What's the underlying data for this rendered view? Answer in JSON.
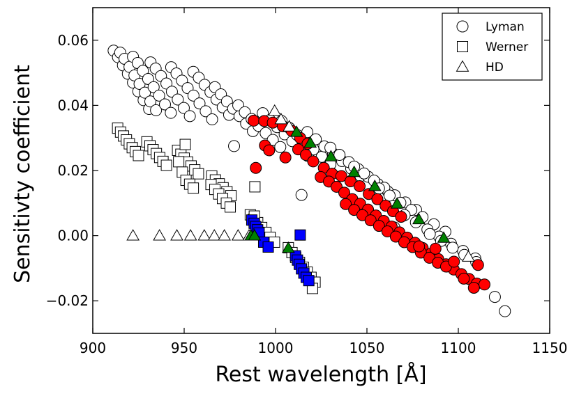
{
  "chart_data": {
    "type": "scatter",
    "title": "",
    "xlabel": "Rest wavelength [Å]",
    "ylabel": "Sensitivty coefficient",
    "xlim": [
      900,
      1150
    ],
    "ylim": [
      -0.03,
      0.07
    ],
    "xticks": [
      900,
      950,
      1000,
      1050,
      1100,
      1150
    ],
    "xtick_labels": [
      "900",
      "950",
      "1000",
      "1050",
      "1100",
      "1150"
    ],
    "yticks": [
      -0.02,
      0.0,
      0.02,
      0.04,
      0.06
    ],
    "ytick_labels": [
      "−0.02",
      "0.00",
      "0.02",
      "0.04",
      "0.06"
    ],
    "grid": false,
    "legend_position": "top-right",
    "legend": [
      {
        "label": "Lyman",
        "marker": "circle"
      },
      {
        "label": "Werner",
        "marker": "square"
      },
      {
        "label": "HD",
        "marker": "triangle"
      }
    ],
    "series": [
      {
        "name": "Lyman",
        "marker": "circle",
        "color": "#ffffff",
        "points": [
          [
            911.4,
            0.0568
          ],
          [
            913.8,
            0.0548
          ],
          [
            916.5,
            0.0523
          ],
          [
            919.2,
            0.0497
          ],
          [
            922.0,
            0.047
          ],
          [
            924.9,
            0.0443
          ],
          [
            927.8,
            0.0416
          ],
          [
            930.8,
            0.0389
          ],
          [
            915.0,
            0.0562
          ],
          [
            917.4,
            0.0543
          ],
          [
            920.1,
            0.0518
          ],
          [
            922.8,
            0.0492
          ],
          [
            925.6,
            0.0466
          ],
          [
            928.5,
            0.0439
          ],
          [
            931.5,
            0.0412
          ],
          [
            934.6,
            0.0385
          ],
          [
            922.0,
            0.0549
          ],
          [
            924.6,
            0.053
          ],
          [
            927.4,
            0.0506
          ],
          [
            930.3,
            0.0481
          ],
          [
            933.3,
            0.0456
          ],
          [
            936.3,
            0.043
          ],
          [
            939.5,
            0.0403
          ],
          [
            942.7,
            0.0377
          ],
          [
            931.6,
            0.0532
          ],
          [
            934.4,
            0.0513
          ],
          [
            937.3,
            0.049
          ],
          [
            940.3,
            0.0467
          ],
          [
            943.3,
            0.0442
          ],
          [
            946.5,
            0.0418
          ],
          [
            949.8,
            0.0392
          ],
          [
            953.1,
            0.0367
          ],
          [
            942.9,
            0.0517
          ],
          [
            945.8,
            0.0498
          ],
          [
            948.8,
            0.0476
          ],
          [
            951.9,
            0.0453
          ],
          [
            955.1,
            0.043
          ],
          [
            958.4,
            0.0406
          ],
          [
            961.8,
            0.0382
          ],
          [
            965.3,
            0.0357
          ],
          [
            955.0,
            0.0503
          ],
          [
            958.0,
            0.0485
          ],
          [
            961.2,
            0.0463
          ],
          [
            964.4,
            0.0441
          ],
          [
            967.7,
            0.0418
          ],
          [
            971.1,
            0.0394
          ],
          [
            974.6,
            0.0371
          ],
          [
            966.8,
            0.0456
          ],
          [
            970.1,
            0.0434
          ],
          [
            973.4,
            0.0412
          ],
          [
            976.8,
            0.039
          ],
          [
            980.3,
            0.0367
          ],
          [
            983.9,
            0.0344
          ],
          [
            987.6,
            0.0321
          ],
          [
            979.6,
            0.04
          ],
          [
            983.2,
            0.0379
          ],
          [
            986.9,
            0.0358
          ],
          [
            990.7,
            0.0337
          ],
          [
            994.6,
            0.0315
          ],
          [
            998.5,
            0.0294
          ],
          [
            1002.6,
            0.0272
          ],
          [
            993.0,
            0.0376
          ],
          [
            996.9,
            0.0355
          ],
          [
            1000.9,
            0.0333
          ],
          [
            1005.0,
            0.0311
          ],
          [
            1009.2,
            0.029
          ],
          [
            1013.5,
            0.0267
          ],
          [
            1017.8,
            0.0244
          ],
          [
            1003.3,
            0.0352
          ],
          [
            1007.5,
            0.0331
          ],
          [
            1011.8,
            0.0309
          ],
          [
            1016.2,
            0.0288
          ],
          [
            1020.7,
            0.0265
          ],
          [
            1025.3,
            0.0242
          ],
          [
            1030.0,
            0.0219
          ],
          [
            1017.4,
            0.0318
          ],
          [
            1022.0,
            0.0296
          ],
          [
            1026.7,
            0.0274
          ],
          [
            1031.5,
            0.0252
          ],
          [
            1036.4,
            0.0229
          ],
          [
            1041.4,
            0.0206
          ],
          [
            1046.5,
            0.0183
          ],
          [
            1030.0,
            0.027
          ],
          [
            1035.0,
            0.0248
          ],
          [
            1040.1,
            0.0226
          ],
          [
            1045.3,
            0.0204
          ],
          [
            1050.6,
            0.0181
          ],
          [
            1056.0,
            0.0158
          ],
          [
            1061.5,
            0.0135
          ],
          [
            1043.0,
            0.0212
          ],
          [
            1048.4,
            0.0191
          ],
          [
            1053.9,
            0.0169
          ],
          [
            1059.5,
            0.0147
          ],
          [
            1065.2,
            0.0124
          ],
          [
            1071.0,
            0.0102
          ],
          [
            1076.9,
            0.0079
          ],
          [
            1056.6,
            0.0145
          ],
          [
            1062.4,
            0.0123
          ],
          [
            1068.3,
            0.0101
          ],
          [
            1074.3,
            0.0079
          ],
          [
            1080.4,
            0.0057
          ],
          [
            1086.6,
            0.0035
          ],
          [
            1092.9,
            0.0012
          ],
          [
            1070.6,
            0.0063
          ],
          [
            1076.8,
            0.0041
          ],
          [
            1083.1,
            0.0019
          ],
          [
            1089.5,
            -0.0003
          ],
          [
            1096.0,
            -0.0025
          ],
          [
            1102.6,
            -0.0047
          ],
          [
            1109.3,
            -0.007
          ],
          [
            1084.4,
            0.0005
          ],
          [
            1090.6,
            -0.0016
          ],
          [
            1096.9,
            -0.0037
          ],
          [
            1103.3,
            -0.0059
          ],
          [
            1109.8,
            -0.0081
          ],
          [
            977.3,
            0.0275
          ],
          [
            1014.2,
            0.0125
          ],
          [
            1065.0,
            0.0025
          ],
          [
            1120.0,
            -0.0188
          ],
          [
            1125.5,
            -0.0232
          ]
        ]
      },
      {
        "name": "Lyman (red)",
        "marker": "circle",
        "color": "#ff0000",
        "points": [
          [
            988.0,
            0.0353
          ],
          [
            993.8,
            0.0352
          ],
          [
            989.2,
            0.0208
          ],
          [
            998.5,
            0.0347
          ],
          [
            1004.0,
            0.0336
          ],
          [
            1008.8,
            0.0322
          ],
          [
            1013.5,
            0.03
          ],
          [
            1017.5,
            0.0282
          ],
          [
            994.2,
            0.0277
          ],
          [
            996.5,
            0.0262
          ],
          [
            1005.4,
            0.024
          ],
          [
            1012.4,
            0.0265
          ],
          [
            1016.6,
            0.0248
          ],
          [
            1020.6,
            0.0228
          ],
          [
            1026.4,
            0.0208
          ],
          [
            1031.0,
            0.019
          ],
          [
            1036.0,
            0.0183
          ],
          [
            1041.0,
            0.0167
          ],
          [
            1046.0,
            0.0152
          ],
          [
            1051.0,
            0.0128
          ],
          [
            1055.7,
            0.0112
          ],
          [
            1060.2,
            0.0092
          ],
          [
            1064.3,
            0.0075
          ],
          [
            1068.7,
            0.0058
          ],
          [
            1024.7,
            0.018
          ],
          [
            1029.2,
            0.0166
          ],
          [
            1033.4,
            0.015
          ],
          [
            1037.6,
            0.0132
          ],
          [
            1042.0,
            0.0112
          ],
          [
            1046.3,
            0.0098
          ],
          [
            1050.6,
            0.008
          ],
          [
            1054.9,
            0.0062
          ],
          [
            1059.2,
            0.0045
          ],
          [
            1063.5,
            0.0028
          ],
          [
            1067.8,
            0.001
          ],
          [
            1072.0,
            -0.0006
          ],
          [
            1076.3,
            -0.0022
          ],
          [
            1080.5,
            -0.0038
          ],
          [
            1084.8,
            -0.0056
          ],
          [
            1089.0,
            -0.0072
          ],
          [
            1093.2,
            -0.0088
          ],
          [
            1097.5,
            -0.0104
          ],
          [
            1101.7,
            -0.0118
          ],
          [
            1105.9,
            -0.0133
          ],
          [
            1110.1,
            -0.0147
          ],
          [
            1114.3,
            -0.015
          ],
          [
            1038.4,
            0.0097
          ],
          [
            1043.0,
            0.0079
          ],
          [
            1047.5,
            0.0063
          ],
          [
            1052.0,
            0.0047
          ],
          [
            1056.6,
            0.003
          ],
          [
            1061.2,
            0.0013
          ],
          [
            1065.8,
            -0.0003
          ],
          [
            1070.4,
            -0.002
          ],
          [
            1075.0,
            -0.0035
          ],
          [
            1079.5,
            -0.0052
          ],
          [
            1084.2,
            -0.0068
          ],
          [
            1088.8,
            -0.0083
          ],
          [
            1093.3,
            -0.0095
          ],
          [
            1097.6,
            -0.008
          ],
          [
            1078.5,
            -0.0033
          ],
          [
            1087.5,
            -0.004
          ],
          [
            1103.0,
            -0.0132
          ],
          [
            1108.5,
            -0.016
          ],
          [
            1110.8,
            -0.009
          ]
        ]
      },
      {
        "name": "Werner",
        "marker": "square",
        "color": "#ffffff",
        "points": [
          [
            913.6,
            0.033
          ],
          [
            915.2,
            0.0318
          ],
          [
            916.8,
            0.0306
          ],
          [
            918.4,
            0.0294
          ],
          [
            920.0,
            0.0282
          ],
          [
            921.6,
            0.027
          ],
          [
            923.3,
            0.0258
          ],
          [
            925.0,
            0.0246
          ],
          [
            929.6,
            0.0288
          ],
          [
            931.3,
            0.0276
          ],
          [
            933.0,
            0.0264
          ],
          [
            934.8,
            0.0252
          ],
          [
            936.6,
            0.024
          ],
          [
            938.4,
            0.0228
          ],
          [
            940.3,
            0.0216
          ],
          [
            946.4,
            0.0262
          ],
          [
            948.2,
            0.025
          ],
          [
            950.0,
            0.0238
          ],
          [
            951.9,
            0.0226
          ],
          [
            953.8,
            0.0214
          ],
          [
            955.8,
            0.0202
          ],
          [
            957.8,
            0.019
          ],
          [
            947.0,
            0.0227
          ],
          [
            949.0,
            0.0195
          ],
          [
            951.0,
            0.017
          ],
          [
            953.0,
            0.0158
          ],
          [
            955.0,
            0.0146
          ],
          [
            965.1,
            0.0183
          ],
          [
            967.1,
            0.0171
          ],
          [
            969.2,
            0.0159
          ],
          [
            971.3,
            0.0147
          ],
          [
            973.4,
            0.0135
          ],
          [
            975.6,
            0.0123
          ],
          [
            964.7,
            0.0157
          ],
          [
            966.8,
            0.0142
          ],
          [
            968.9,
            0.0128
          ],
          [
            971.0,
            0.0114
          ],
          [
            973.1,
            0.01
          ],
          [
            975.2,
            0.0088
          ],
          [
            986.2,
            0.0064
          ],
          [
            988.0,
            0.005
          ],
          [
            990.2,
            0.004
          ],
          [
            992.4,
            0.0025
          ],
          [
            994.7,
            0.001
          ],
          [
            997.0,
            -0.0005
          ],
          [
            999.4,
            -0.002
          ],
          [
            1007.0,
            -0.0037
          ],
          [
            1009.0,
            -0.0052
          ],
          [
            1011.0,
            -0.0067
          ],
          [
            1013.1,
            -0.0082
          ],
          [
            1015.2,
            -0.0097
          ],
          [
            1017.3,
            -0.0112
          ],
          [
            1019.4,
            -0.0128
          ],
          [
            1021.6,
            -0.0143
          ],
          [
            1020.2,
            -0.0162
          ],
          [
            950.6,
            0.028
          ],
          [
            988.7,
            0.015
          ],
          [
            988.4,
            0.006
          ]
        ]
      },
      {
        "name": "Werner (blue)",
        "marker": "square",
        "color": "#0000ff",
        "points": [
          [
            987.0,
            0.0048
          ],
          [
            988.3,
            0.0038
          ],
          [
            989.2,
            0.0028
          ],
          [
            990.2,
            0.0018
          ],
          [
            991.0,
            0.0008
          ],
          [
            993.5,
            -0.002
          ],
          [
            996.0,
            -0.0035
          ],
          [
            1010.9,
            -0.0062
          ],
          [
            1012.0,
            -0.0075
          ],
          [
            1013.0,
            -0.0088
          ],
          [
            1014.2,
            -0.0102
          ],
          [
            1015.5,
            -0.0115
          ],
          [
            1016.8,
            -0.0128
          ],
          [
            1018.2,
            -0.0138
          ],
          [
            1013.5,
            0.0002
          ]
        ]
      },
      {
        "name": "HD",
        "marker": "triangle",
        "color": "#ffffff",
        "points": [
          [
            922.0,
            0.0
          ],
          [
            936.5,
            0.0
          ],
          [
            946.0,
            0.0
          ],
          [
            953.5,
            0.0
          ],
          [
            961.0,
            0.0
          ],
          [
            966.5,
            0.0
          ],
          [
            972.0,
            0.0
          ],
          [
            979.5,
            0.0
          ],
          [
            985.5,
            0.0
          ],
          [
            999.5,
            0.0383
          ],
          [
            1003.0,
            0.0357
          ],
          [
            1007.5,
            0.0335
          ],
          [
            1105.5,
            -0.0065
          ]
        ]
      },
      {
        "name": "HD (green)",
        "marker": "triangle",
        "color": "#008000",
        "points": [
          [
            986.5,
            0.0
          ],
          [
            988.5,
            0.0
          ],
          [
            1007.0,
            -0.0038
          ],
          [
            1011.5,
            0.0318
          ],
          [
            1019.0,
            0.0285
          ],
          [
            1030.3,
            0.0243
          ],
          [
            1043.0,
            0.0195
          ],
          [
            1054.3,
            0.0152
          ],
          [
            1066.5,
            0.0098
          ],
          [
            1078.4,
            0.005
          ],
          [
            1092.0,
            -0.0007
          ]
        ]
      }
    ]
  }
}
